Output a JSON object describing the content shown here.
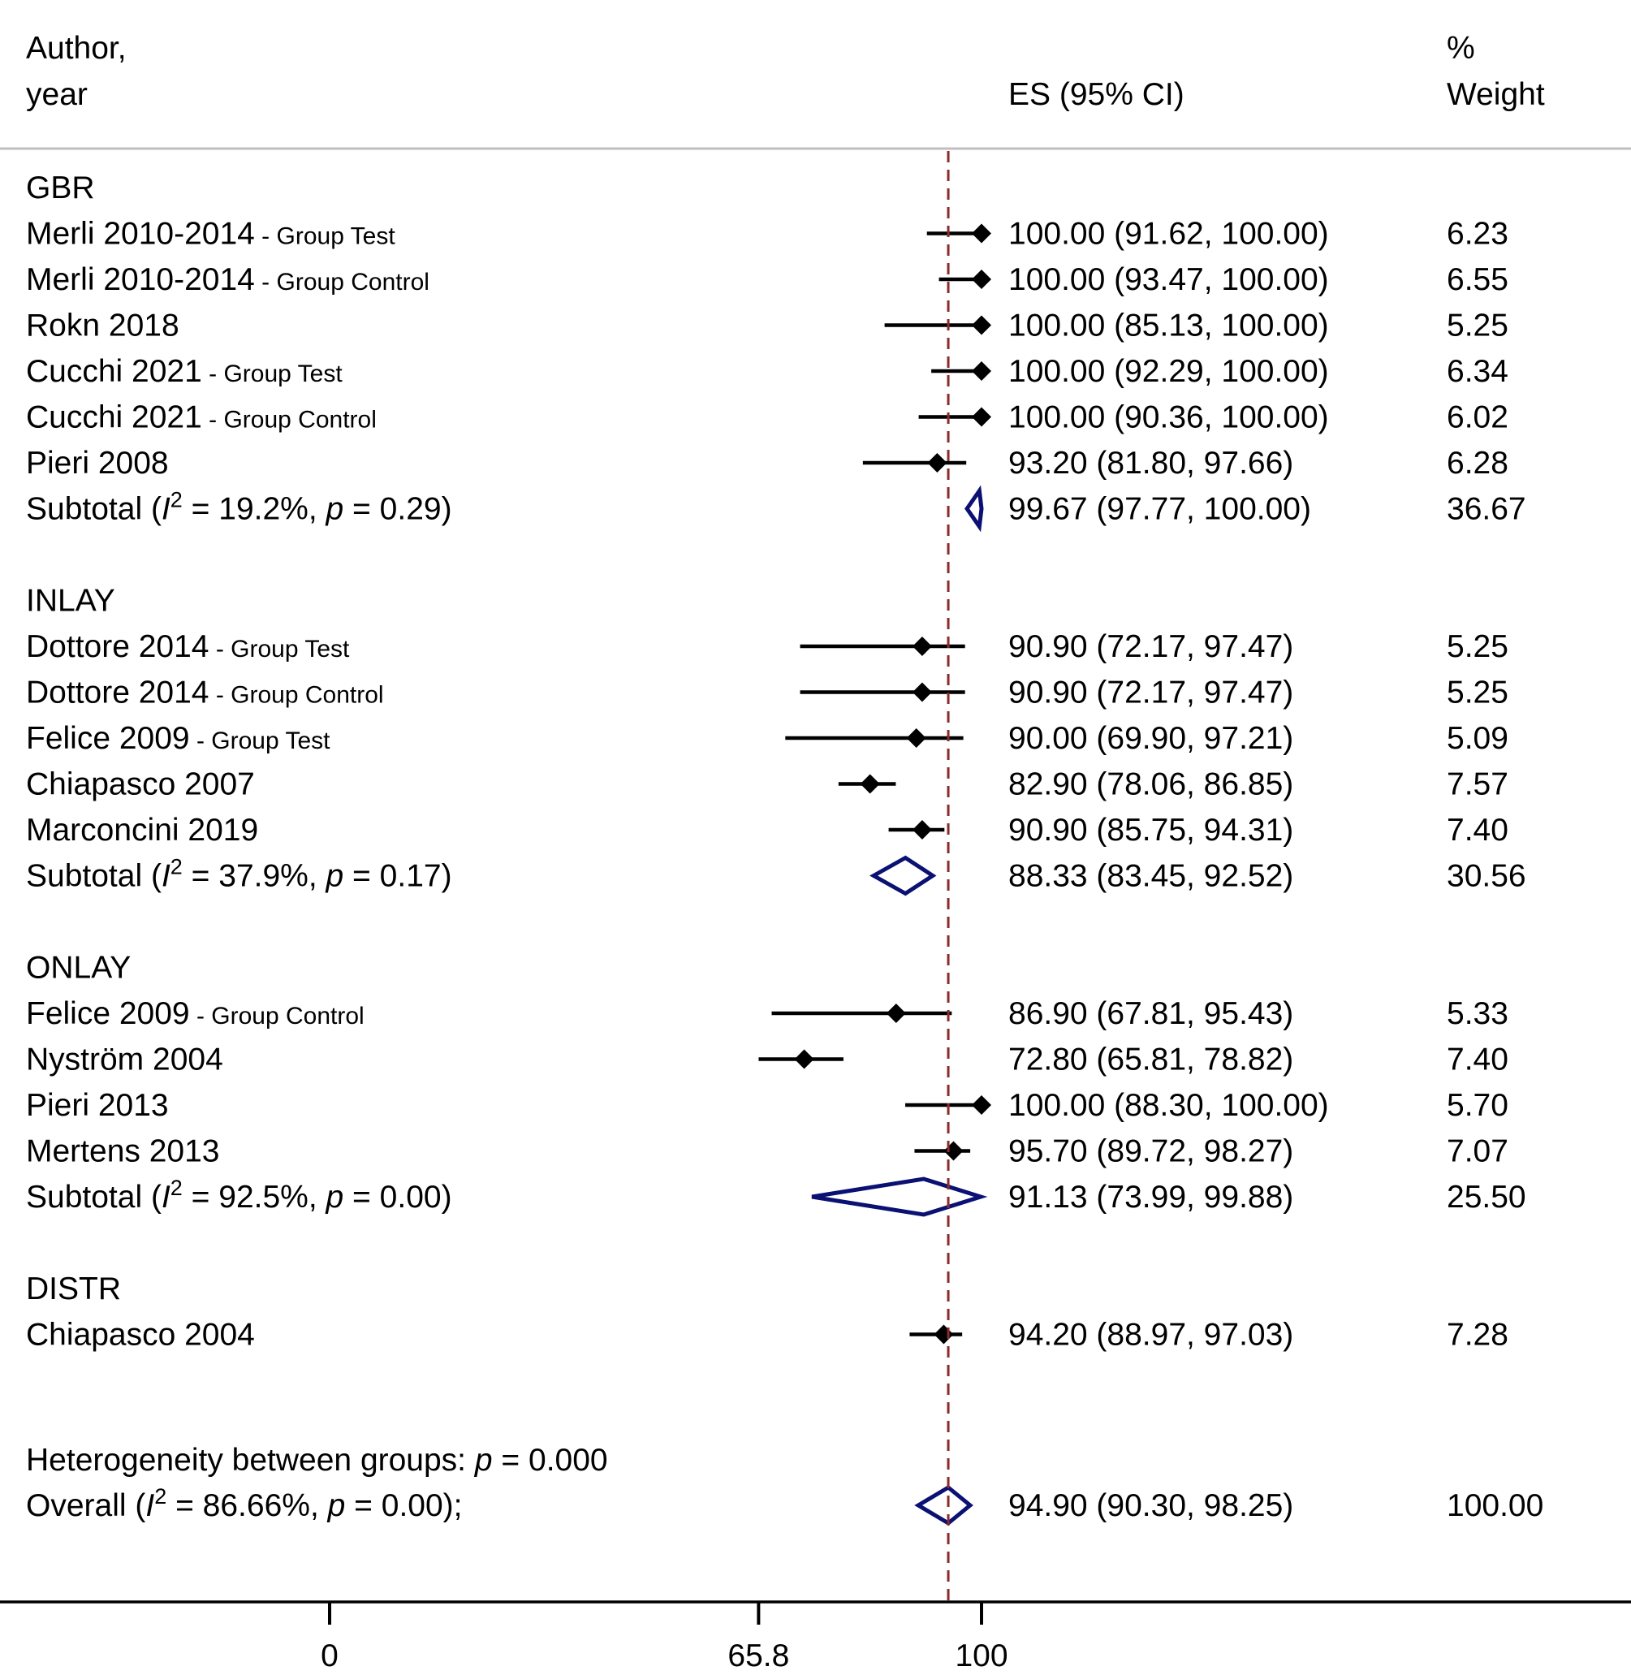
{
  "header": {
    "author_line1": "Author,",
    "author_line2": "year",
    "es_label": "ES (95% CI)",
    "weight_line1": "%",
    "weight_line2": "Weight"
  },
  "chart_data": {
    "type": "forest",
    "x_axis": {
      "ticks": [
        0,
        65.8,
        100
      ]
    },
    "reference_line": 94.9,
    "colors": {
      "ci": "#000000",
      "diamond": "#0a1172",
      "reference": "#8b2b2b",
      "rule": "#bfbfbf"
    },
    "groups": [
      {
        "name": "GBR",
        "studies": [
          {
            "author": "Merli 2010-2014",
            "subgroup": "- Group Test",
            "es": 100.0,
            "lo": 91.62,
            "hi": 100.0,
            "es_text": "100.00 (91.62, 100.00)",
            "weight": "6.23"
          },
          {
            "author": "Merli 2010-2014",
            "subgroup": "- Group Control",
            "es": 100.0,
            "lo": 93.47,
            "hi": 100.0,
            "es_text": "100.00 (93.47, 100.00)",
            "weight": "6.55"
          },
          {
            "author": "Rokn 2018",
            "subgroup": "",
            "es": 100.0,
            "lo": 85.13,
            "hi": 100.0,
            "es_text": "100.00 (85.13, 100.00)",
            "weight": "5.25"
          },
          {
            "author": "Cucchi 2021",
            "subgroup": "- Group Test",
            "es": 100.0,
            "lo": 92.29,
            "hi": 100.0,
            "es_text": "100.00 (92.29, 100.00)",
            "weight": "6.34"
          },
          {
            "author": "Cucchi 2021",
            "subgroup": "- Group Control",
            "es": 100.0,
            "lo": 90.36,
            "hi": 100.0,
            "es_text": "100.00 (90.36, 100.00)",
            "weight": "6.02"
          },
          {
            "author": "Pieri 2008",
            "subgroup": "",
            "es": 93.2,
            "lo": 81.8,
            "hi": 97.66,
            "es_text": "93.20 (81.80, 97.66)",
            "weight": "6.28"
          }
        ],
        "subtotal": {
          "label": "Subtotal",
          "i2": "19.2%",
          "p": "0.29",
          "es": 99.67,
          "lo": 97.77,
          "hi": 100.0,
          "es_text": "99.67 (97.77, 100.00)",
          "weight": "36.67"
        }
      },
      {
        "name": "INLAY",
        "studies": [
          {
            "author": "Dottore 2014",
            "subgroup": "- Group Test",
            "es": 90.9,
            "lo": 72.17,
            "hi": 97.47,
            "es_text": "90.90 (72.17, 97.47)",
            "weight": "5.25"
          },
          {
            "author": "Dottore 2014",
            "subgroup": "- Group Control",
            "es": 90.9,
            "lo": 72.17,
            "hi": 97.47,
            "es_text": "90.90 (72.17, 97.47)",
            "weight": "5.25"
          },
          {
            "author": "Felice 2009",
            "subgroup": "- Group Test",
            "es": 90.0,
            "lo": 69.9,
            "hi": 97.21,
            "es_text": "90.00 (69.90, 97.21)",
            "weight": "5.09"
          },
          {
            "author": "Chiapasco 2007",
            "subgroup": "",
            "es": 82.9,
            "lo": 78.06,
            "hi": 86.85,
            "es_text": "82.90 (78.06, 86.85)",
            "weight": "7.57"
          },
          {
            "author": "Marconcini 2019",
            "subgroup": "",
            "es": 90.9,
            "lo": 85.75,
            "hi": 94.31,
            "es_text": "90.90 (85.75, 94.31)",
            "weight": "7.40"
          }
        ],
        "subtotal": {
          "label": "Subtotal",
          "i2": "37.9%",
          "p": "0.17",
          "es": 88.33,
          "lo": 83.45,
          "hi": 92.52,
          "es_text": "88.33 (83.45, 92.52)",
          "weight": "30.56"
        }
      },
      {
        "name": "ONLAY",
        "studies": [
          {
            "author": "Felice 2009",
            "subgroup": "- Group Control",
            "es": 86.9,
            "lo": 67.81,
            "hi": 95.43,
            "es_text": "86.90 (67.81, 95.43)",
            "weight": "5.33"
          },
          {
            "author": "Nyström 2004",
            "subgroup": "",
            "es": 72.8,
            "lo": 65.81,
            "hi": 78.82,
            "es_text": "72.80 (65.81, 78.82)",
            "weight": "7.40"
          },
          {
            "author": "Pieri 2013",
            "subgroup": "",
            "es": 100.0,
            "lo": 88.3,
            "hi": 100.0,
            "es_text": "100.00 (88.30, 100.00)",
            "weight": "5.70"
          },
          {
            "author": "Mertens 2013",
            "subgroup": "",
            "es": 95.7,
            "lo": 89.72,
            "hi": 98.27,
            "es_text": "95.70 (89.72, 98.27)",
            "weight": "7.07"
          }
        ],
        "subtotal": {
          "label": "Subtotal",
          "i2": "92.5%",
          "p": "0.00",
          "es": 91.13,
          "lo": 73.99,
          "hi": 99.88,
          "es_text": "91.13 (73.99, 99.88)",
          "weight": "25.50"
        }
      },
      {
        "name": "DISTR",
        "studies": [
          {
            "author": "Chiapasco 2004",
            "subgroup": "",
            "es": 94.2,
            "lo": 88.97,
            "hi": 97.03,
            "es_text": "94.20 (88.97, 97.03)",
            "weight": "7.28"
          }
        ],
        "subtotal": null
      }
    ],
    "heterogeneity": {
      "label": "Heterogeneity between groups:",
      "p": "0.000"
    },
    "overall": {
      "label": "Overall",
      "i2": "86.66%",
      "p": "0.00",
      "es": 94.9,
      "lo": 90.3,
      "hi": 98.25,
      "es_text": "94.90 (90.30, 98.25)",
      "weight": "100.00"
    }
  }
}
